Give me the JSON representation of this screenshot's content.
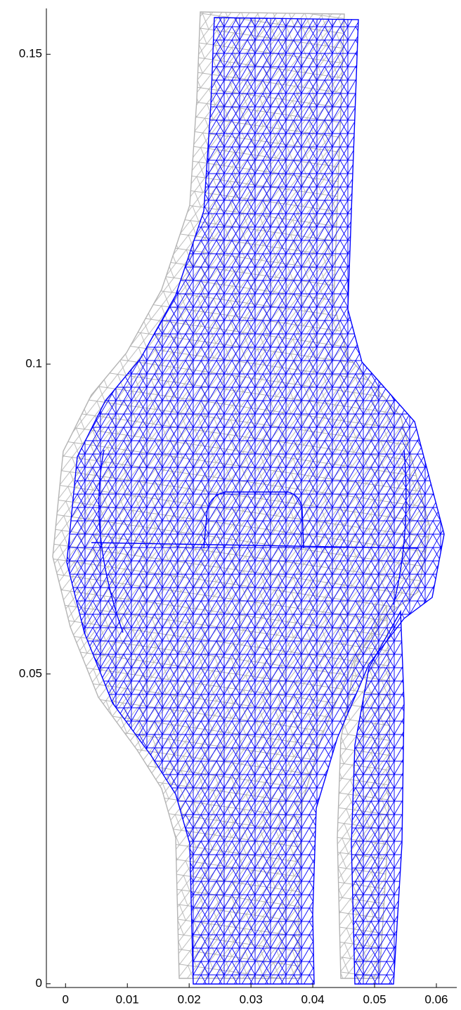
{
  "chart_data": {
    "type": "mesh",
    "color": "#0000ff",
    "ghost_color": "#b4b4b4",
    "xlim": [
      -0.0031,
      0.0633
    ],
    "ylim": [
      -0.0006,
      0.1574
    ],
    "xticks": [
      0,
      0.01,
      0.02,
      0.03,
      0.04,
      0.05,
      0.06
    ],
    "yticks": [
      0,
      0.05,
      0.1,
      0.15
    ]
  }
}
